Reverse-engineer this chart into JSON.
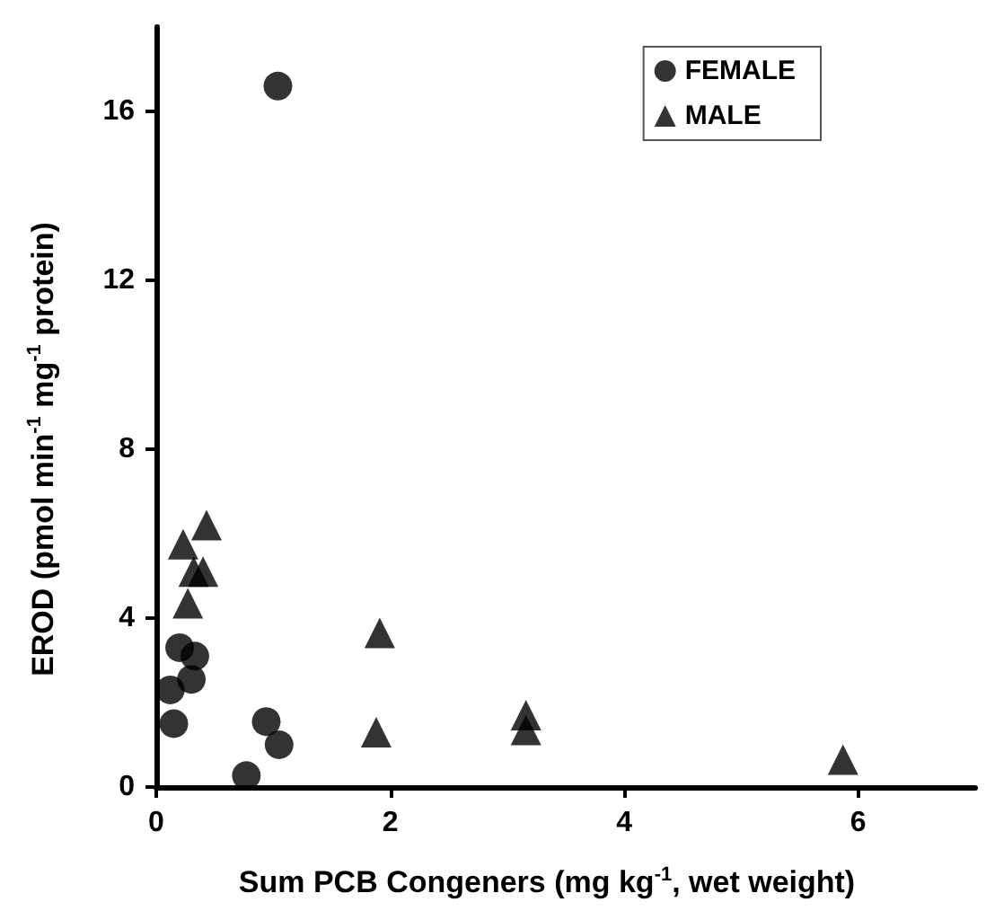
{
  "chart_data": {
    "type": "scatter",
    "xlabel": "Sum PCB Congeners (mg kg$^{-1}$, wet weight)",
    "ylabel": "EROD (pmol min$^{-1}$ mg$^{-1}$ protein)",
    "xlim": [
      0,
      7
    ],
    "xticks": [
      0,
      2,
      4,
      6
    ],
    "ylim": [
      0,
      18
    ],
    "yticks": [
      0,
      4,
      8,
      12,
      16
    ],
    "grid": false,
    "legend": "top right",
    "series": [
      {
        "name": "FEMALE",
        "color": "#000000",
        "marker": "circle",
        "x": [
          0.15,
          0.12,
          0.3,
          0.2,
          0.33,
          0.77,
          0.94,
          1.05,
          1.04
        ],
        "values": [
          1.5,
          2.3,
          2.55,
          3.3,
          3.1,
          0.27,
          1.55,
          1.0,
          16.6
        ]
      },
      {
        "name": "MALE",
        "color": "#000000",
        "marker": "triangle",
        "x": [
          0.23,
          0.43,
          0.32,
          0.4,
          0.27,
          1.91,
          1.88,
          3.16,
          3.16,
          5.87
        ],
        "values": [
          5.75,
          6.2,
          5.1,
          5.1,
          4.35,
          3.65,
          1.3,
          1.7,
          1.35,
          0.65
        ]
      }
    ]
  }
}
